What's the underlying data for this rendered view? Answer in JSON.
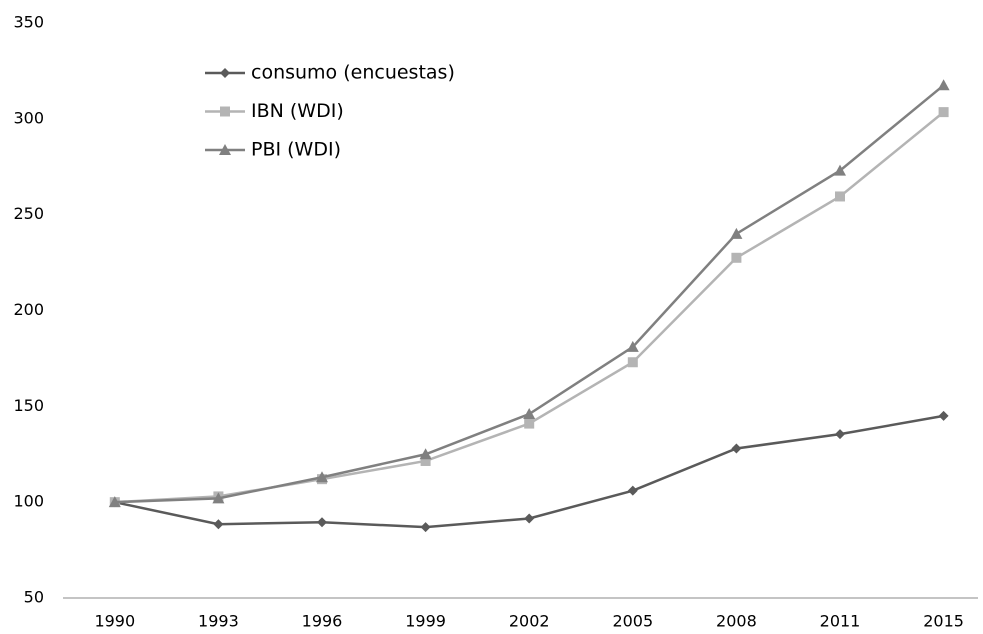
{
  "chart_data": {
    "type": "line",
    "categories": [
      "1990",
      "1993",
      "1996",
      "1999",
      "2002",
      "2005",
      "2008",
      "2011",
      "2015"
    ],
    "series": [
      {
        "name": "consumo (encuestas)",
        "color": "#5a5a5a",
        "marker": "diamond",
        "values": [
          100,
          88.5,
          89.5,
          87,
          91.5,
          106,
          128,
          135.5,
          145
        ]
      },
      {
        "name": "IBN (WDI)",
        "color": "#b4b4b4",
        "marker": "square",
        "values": [
          100,
          103,
          112,
          121.5,
          141,
          173,
          227.5,
          259.5,
          303.5
        ]
      },
      {
        "name": "PBI (WDI)",
        "color": "#808080",
        "marker": "triangle",
        "values": [
          100,
          102,
          113,
          125,
          146,
          181,
          240,
          273,
          317.5
        ]
      }
    ],
    "ylim": [
      50,
      350
    ],
    "yticks": [
      50,
      100,
      150,
      200,
      250,
      300,
      350
    ],
    "grid": false,
    "legend": "upper left"
  }
}
